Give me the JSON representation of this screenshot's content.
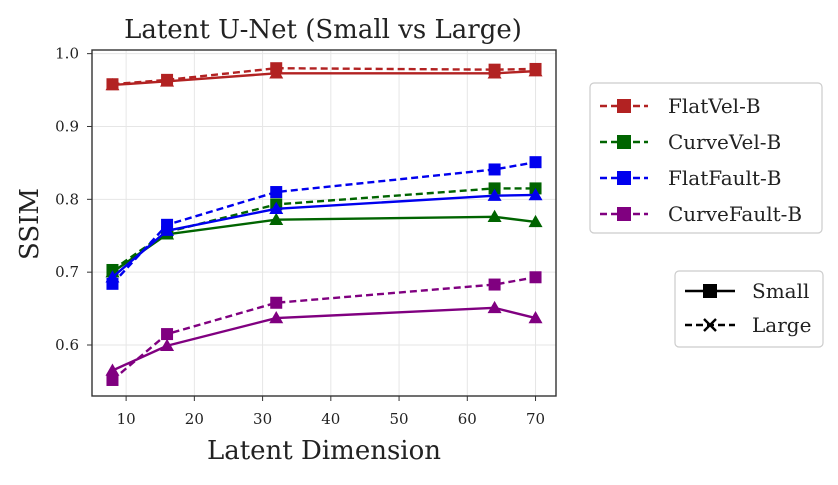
{
  "chart_data": {
    "type": "line",
    "title": "Latent U-Net (Small vs Large)",
    "xlabel": "Latent Dimension",
    "ylabel": "SSIM",
    "x": [
      8,
      16,
      32,
      64,
      70
    ],
    "xlim": [
      5,
      73
    ],
    "ylim": [
      0.53,
      1.005
    ],
    "xticks": [
      "10",
      "20",
      "30",
      "40",
      "50",
      "60",
      "70"
    ],
    "yticks": [
      "0.6",
      "0.7",
      "0.8",
      "0.9",
      "1.0"
    ],
    "grid": true,
    "datasets": [
      {
        "name": "FlatVel-B",
        "color": "#b22222",
        "small": [
          0.957,
          0.962,
          0.973,
          0.973,
          0.976
        ],
        "large": [
          0.958,
          0.964,
          0.98,
          0.978,
          0.979
        ]
      },
      {
        "name": "CurveVel-B",
        "color": "#006400",
        "small": [
          0.7,
          0.752,
          0.772,
          0.776,
          0.769
        ],
        "large": [
          0.703,
          0.755,
          0.793,
          0.815,
          0.815
        ]
      },
      {
        "name": "FlatFault-B",
        "color": "#0000ee",
        "small": [
          0.693,
          0.757,
          0.787,
          0.805,
          0.806
        ],
        "large": [
          0.684,
          0.765,
          0.81,
          0.841,
          0.851
        ]
      },
      {
        "name": "CurveFault-B",
        "color": "#800080",
        "small": [
          0.565,
          0.599,
          0.637,
          0.651,
          0.637
        ],
        "large": [
          0.552,
          0.615,
          0.658,
          0.683,
          0.693
        ]
      }
    ],
    "legend_datasets_placement": "right-upper",
    "legend_styles": [
      {
        "label": "Small",
        "line": "solid",
        "marker": "square"
      },
      {
        "label": "Large",
        "line": "dashed",
        "marker": "x"
      }
    ],
    "legend_styles_placement": "right-lower"
  }
}
